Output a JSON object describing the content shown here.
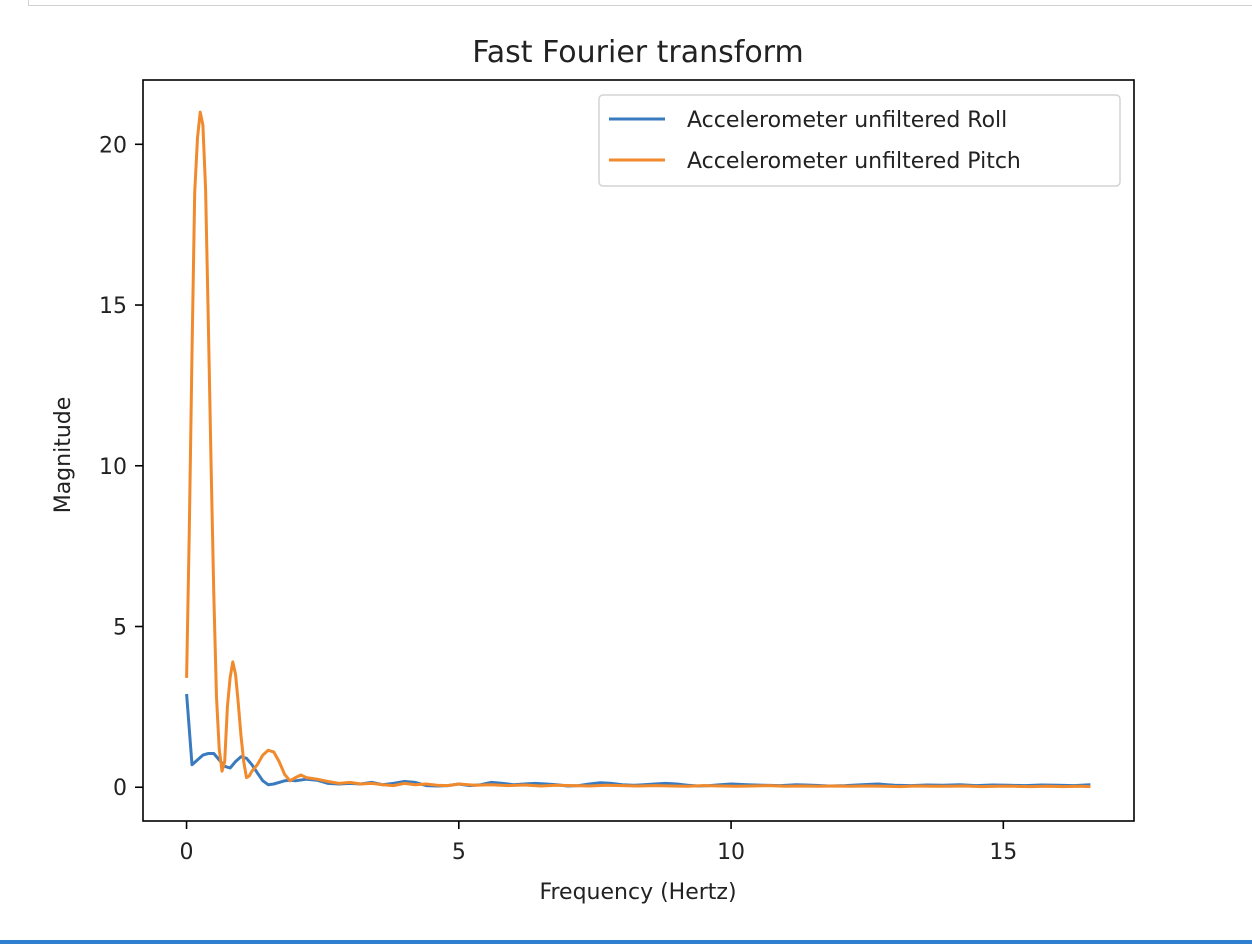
{
  "chart_data": {
    "type": "line",
    "title": "Fast Fourier transform",
    "xlabel": "Frequency (Hertz)",
    "ylabel": "Magnitude",
    "xlim": [
      -0.8,
      17.4
    ],
    "ylim": [
      -1.05,
      22.0
    ],
    "xticks": [
      0,
      5,
      10,
      15
    ],
    "yticks": [
      0,
      5,
      10,
      15,
      20
    ],
    "grid": false,
    "legend_position": "top-right",
    "series": [
      {
        "name": "Accelerometer unfiltered Roll",
        "color": "#3a7bbf",
        "x": [
          0,
          0.1,
          0.2,
          0.3,
          0.4,
          0.5,
          0.6,
          0.7,
          0.8,
          0.9,
          1.0,
          1.1,
          1.2,
          1.3,
          1.4,
          1.5,
          1.6,
          1.7,
          1.8,
          1.9,
          2.0,
          2.2,
          2.4,
          2.6,
          2.8,
          3.0,
          3.2,
          3.4,
          3.6,
          3.8,
          4.0,
          4.2,
          4.4,
          4.6,
          4.8,
          5.0,
          5.2,
          5.4,
          5.6,
          5.8,
          6.0,
          6.2,
          6.4,
          6.6,
          6.8,
          7.0,
          7.2,
          7.4,
          7.6,
          7.8,
          8.0,
          8.2,
          8.4,
          8.6,
          8.8,
          9.0,
          9.2,
          9.4,
          9.6,
          9.8,
          10.0,
          10.3,
          10.6,
          10.9,
          11.2,
          11.5,
          11.8,
          12.1,
          12.4,
          12.7,
          13.0,
          13.3,
          13.6,
          13.9,
          14.2,
          14.5,
          14.8,
          15.1,
          15.4,
          15.7,
          16.0,
          16.3,
          16.6
        ],
        "values": [
          2.9,
          0.7,
          0.85,
          1.0,
          1.05,
          1.05,
          0.85,
          0.65,
          0.6,
          0.8,
          0.95,
          0.9,
          0.7,
          0.45,
          0.2,
          0.08,
          0.1,
          0.15,
          0.2,
          0.22,
          0.2,
          0.25,
          0.22,
          0.12,
          0.1,
          0.12,
          0.1,
          0.15,
          0.08,
          0.12,
          0.18,
          0.15,
          0.05,
          0.04,
          0.05,
          0.1,
          0.05,
          0.08,
          0.15,
          0.12,
          0.08,
          0.1,
          0.12,
          0.1,
          0.08,
          0.04,
          0.05,
          0.1,
          0.14,
          0.12,
          0.08,
          0.06,
          0.08,
          0.1,
          0.12,
          0.1,
          0.06,
          0.04,
          0.05,
          0.08,
          0.1,
          0.08,
          0.06,
          0.05,
          0.08,
          0.06,
          0.04,
          0.05,
          0.08,
          0.1,
          0.06,
          0.05,
          0.07,
          0.06,
          0.08,
          0.05,
          0.07,
          0.06,
          0.05,
          0.07,
          0.06,
          0.05,
          0.08
        ]
      },
      {
        "name": "Accelerometer unfiltered Pitch",
        "color": "#f08a2c",
        "x": [
          0,
          0.05,
          0.1,
          0.15,
          0.2,
          0.25,
          0.3,
          0.35,
          0.4,
          0.45,
          0.5,
          0.55,
          0.6,
          0.65,
          0.7,
          0.75,
          0.8,
          0.85,
          0.9,
          0.95,
          1.0,
          1.05,
          1.1,
          1.15,
          1.2,
          1.3,
          1.4,
          1.5,
          1.6,
          1.7,
          1.8,
          1.9,
          2.0,
          2.1,
          2.2,
          2.4,
          2.6,
          2.8,
          3.0,
          3.2,
          3.4,
          3.6,
          3.8,
          4.0,
          4.2,
          4.4,
          4.6,
          4.8,
          5.0,
          5.3,
          5.6,
          5.9,
          6.2,
          6.5,
          6.8,
          7.1,
          7.4,
          7.7,
          8.0,
          8.3,
          8.6,
          8.9,
          9.2,
          9.5,
          9.8,
          10.1,
          10.4,
          10.7,
          11.0,
          11.3,
          11.6,
          11.9,
          12.2,
          12.5,
          12.8,
          13.1,
          13.4,
          13.7,
          14.0,
          14.3,
          14.6,
          14.9,
          15.2,
          15.5,
          15.8,
          16.1,
          16.4,
          16.6
        ],
        "values": [
          3.4,
          8.0,
          13.5,
          18.5,
          20.2,
          21.0,
          20.6,
          18.6,
          14.5,
          10.0,
          6.0,
          2.8,
          1.2,
          0.5,
          0.8,
          2.5,
          3.4,
          3.9,
          3.5,
          2.6,
          1.6,
          0.8,
          0.3,
          0.35,
          0.5,
          0.7,
          1.0,
          1.15,
          1.1,
          0.8,
          0.4,
          0.2,
          0.3,
          0.38,
          0.3,
          0.25,
          0.18,
          0.12,
          0.15,
          0.1,
          0.12,
          0.08,
          0.05,
          0.12,
          0.08,
          0.1,
          0.06,
          0.05,
          0.1,
          0.06,
          0.08,
          0.05,
          0.07,
          0.04,
          0.06,
          0.05,
          0.04,
          0.06,
          0.05,
          0.04,
          0.05,
          0.04,
          0.03,
          0.05,
          0.04,
          0.03,
          0.04,
          0.05,
          0.03,
          0.04,
          0.03,
          0.04,
          0.03,
          0.04,
          0.03,
          0.02,
          0.04,
          0.03,
          0.03,
          0.04,
          0.02,
          0.03,
          0.03,
          0.02,
          0.03,
          0.02,
          0.03,
          0.02
        ]
      }
    ]
  }
}
